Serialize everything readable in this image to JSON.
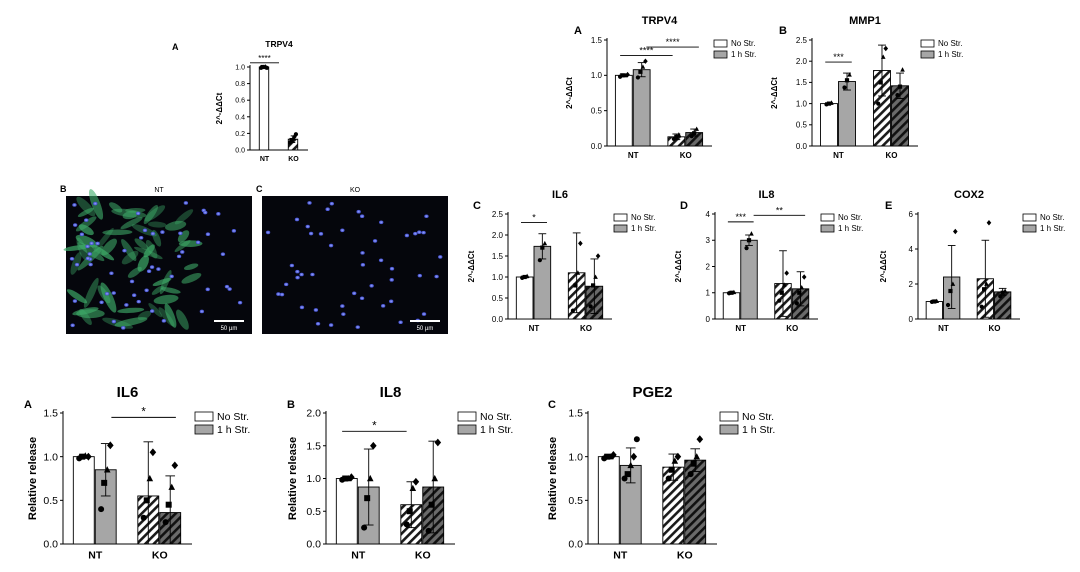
{
  "chart_data": [
    {
      "id": "p1",
      "type": "bar",
      "panel_label": "A",
      "title": "TRPV4",
      "ylabel": "2^-ΔΔCt",
      "categories": [
        "NT",
        "KO"
      ],
      "ylim": [
        0,
        1.0
      ],
      "yticks": [
        0,
        0.2,
        0.4,
        0.6,
        0.8,
        1.0
      ],
      "ytick_labels": [
        "0.0",
        "0.2",
        "0.4",
        "0.6",
        "0.8",
        "1.0"
      ],
      "series": [
        {
          "values": [
            1.0,
            0.13
          ],
          "errors": [
            0.0,
            0.04
          ]
        }
      ],
      "points": [
        [
          0.99,
          1.0,
          1.0,
          1.0,
          0.99
        ],
        [
          0.09,
          0.12,
          0.14,
          0.16,
          0.19
        ]
      ],
      "significance": [
        {
          "label": "****",
          "from": 0,
          "to": 1,
          "y": 1.05
        }
      ]
    },
    {
      "id": "p2",
      "type": "bar",
      "panel_label": "A",
      "title": "TRPV4",
      "ylabel": "2^-ΔΔCt",
      "categories": [
        "NT",
        "KO"
      ],
      "ylim": [
        0,
        1.5
      ],
      "yticks": [
        0,
        0.5,
        1.0,
        1.5
      ],
      "ytick_labels": [
        "0.0",
        "0.5",
        "1.0",
        "1.5"
      ],
      "series": [
        {
          "name": "No Str.",
          "values": [
            1.0,
            0.13
          ],
          "errors": [
            0.02,
            0.04
          ]
        },
        {
          "name": "1 h Str.",
          "values": [
            1.08,
            0.19
          ],
          "errors": [
            0.1,
            0.05
          ]
        }
      ],
      "points": [
        [
          [
            0.98,
            1.0,
            1.0,
            1.01
          ],
          [
            0.97,
            1.05,
            1.12,
            1.2
          ]
        ],
        [
          [
            0.1,
            0.13,
            0.16
          ],
          [
            0.14,
            0.18,
            0.24
          ]
        ]
      ],
      "significance": [
        {
          "label": "****",
          "from": 0.5,
          "to": 2.5,
          "y": 1.28
        },
        {
          "label": "****",
          "from": 1.5,
          "to": 3.5,
          "y": 1.4
        }
      ]
    },
    {
      "id": "p3",
      "type": "bar",
      "panel_label": "B",
      "title": "MMP1",
      "ylabel": "2^-ΔΔCt",
      "categories": [
        "NT",
        "KO"
      ],
      "ylim": [
        0,
        2.5
      ],
      "yticks": [
        0,
        0.5,
        1.0,
        1.5,
        2.0,
        2.5
      ],
      "ytick_labels": [
        "0.0",
        "0.5",
        "1.0",
        "1.5",
        "2.0",
        "2.5"
      ],
      "series": [
        {
          "name": "No Str.",
          "values": [
            1.0,
            1.78
          ],
          "errors": [
            0.02,
            0.6
          ]
        },
        {
          "name": "1 h Str.",
          "values": [
            1.52,
            1.42
          ],
          "errors": [
            0.2,
            0.3
          ]
        }
      ],
      "points": [
        [
          [
            0.98,
            1.0,
            1.02
          ],
          [
            1.38,
            1.55,
            1.68
          ]
        ],
        [
          [
            1.0,
            1.5,
            2.1,
            2.3
          ],
          [
            1.2,
            1.4,
            1.8
          ]
        ]
      ],
      "significance": [
        {
          "label": "***",
          "from": 0.5,
          "to": 1.5,
          "y": 1.98
        }
      ]
    },
    {
      "id": "p4",
      "type": "bar",
      "panel_label": "C",
      "title": "IL6",
      "ylabel": "2^-ΔΔCt",
      "categories": [
        "NT",
        "KO"
      ],
      "ylim": [
        0,
        2.5
      ],
      "yticks": [
        0,
        0.5,
        1.0,
        1.5,
        2.0,
        2.5
      ],
      "ytick_labels": [
        "0.0",
        "0.5",
        "1.0",
        "1.5",
        "2.0",
        "2.5"
      ],
      "series": [
        {
          "name": "No Str.",
          "values": [
            1.0,
            1.1
          ],
          "errors": [
            0.02,
            0.95
          ]
        },
        {
          "name": "1 h Str.",
          "values": [
            1.73,
            0.78
          ],
          "errors": [
            0.3,
            0.65
          ]
        }
      ],
      "points": [
        [
          [
            0.98,
            1.0,
            1.02
          ],
          [
            1.4,
            1.7,
            1.8
          ]
        ],
        [
          [
            0.2,
            0.8,
            1.1,
            1.8
          ],
          [
            0.3,
            0.8,
            1.0,
            1.5
          ]
        ]
      ],
      "significance": [
        {
          "label": "*",
          "from": 0.5,
          "to": 1.5,
          "y": 2.3
        }
      ]
    },
    {
      "id": "p5",
      "type": "bar",
      "panel_label": "D",
      "title": "IL8",
      "ylabel": "2^-ΔΔCt",
      "categories": [
        "NT",
        "KO"
      ],
      "ylim": [
        0,
        4
      ],
      "yticks": [
        0,
        1,
        2,
        3,
        4
      ],
      "ytick_labels": [
        "0",
        "1",
        "2",
        "3",
        "4"
      ],
      "series": [
        {
          "name": "No Str.",
          "values": [
            1.0,
            1.35
          ],
          "errors": [
            0.02,
            1.25
          ]
        },
        {
          "name": "1 h Str.",
          "values": [
            3.0,
            1.15
          ],
          "errors": [
            0.2,
            0.65
          ]
        }
      ],
      "points": [
        [
          [
            0.98,
            1.0,
            1.02
          ],
          [
            2.7,
            3.0,
            3.25
          ]
        ],
        [
          [
            0.7,
            1.0,
            1.3,
            1.75
          ],
          [
            0.6,
            1.0,
            1.2,
            1.6
          ]
        ]
      ],
      "significance": [
        {
          "label": "***",
          "from": 0.5,
          "to": 1.5,
          "y": 3.7
        },
        {
          "label": "**",
          "from": 1.5,
          "to": 3.5,
          "y": 3.95
        }
      ]
    },
    {
      "id": "p6",
      "type": "bar",
      "panel_label": "E",
      "title": "COX2",
      "ylabel": "2^-ΔΔCt",
      "categories": [
        "NT",
        "KO"
      ],
      "ylim": [
        0,
        6
      ],
      "yticks": [
        0,
        2,
        4,
        6
      ],
      "ytick_labels": [
        "0",
        "2",
        "4",
        "6"
      ],
      "series": [
        {
          "name": "No Str.",
          "values": [
            1.0,
            2.3
          ],
          "errors": [
            0.02,
            2.2
          ]
        },
        {
          "name": "1 h Str.",
          "values": [
            2.4,
            1.55
          ],
          "errors": [
            1.8,
            0.2
          ]
        }
      ],
      "points": [
        [
          [
            0.98,
            1.0,
            1.02
          ],
          [
            0.8,
            1.6,
            2.0,
            5.0
          ]
        ],
        [
          [
            0.7,
            1.7,
            2.0,
            5.5
          ],
          [
            1.3,
            1.5,
            1.6
          ]
        ]
      ],
      "significance": []
    },
    {
      "id": "p7",
      "type": "bar",
      "panel_label": "A",
      "title": "IL6",
      "ylabel": "Relative release",
      "categories": [
        "NT",
        "KO"
      ],
      "ylim": [
        0,
        1.5
      ],
      "yticks": [
        0,
        0.5,
        1.0,
        1.5
      ],
      "ytick_labels": [
        "0.0",
        "0.5",
        "1.0",
        "1.5"
      ],
      "series": [
        {
          "name": "No Str.",
          "values": [
            1.0,
            0.55
          ],
          "errors": [
            0.02,
            0.62
          ]
        },
        {
          "name": "1 h Str.",
          "values": [
            0.85,
            0.36
          ],
          "errors": [
            0.3,
            0.42
          ]
        }
      ],
      "points": [
        [
          [
            0.98,
            1.0,
            1.01,
            1.0
          ],
          [
            0.4,
            0.7,
            0.85,
            1.13
          ]
        ],
        [
          [
            0.3,
            0.5,
            0.75,
            1.05
          ],
          [
            0.25,
            0.45,
            0.65,
            0.9
          ]
        ]
      ],
      "significance": [
        {
          "label": "*",
          "from": 1.5,
          "to": 3.5,
          "y": 1.45
        }
      ]
    },
    {
      "id": "p8",
      "type": "bar",
      "panel_label": "B",
      "title": "IL8",
      "ylabel": "Relative release",
      "categories": [
        "NT",
        "KO"
      ],
      "ylim": [
        0,
        2.0
      ],
      "yticks": [
        0,
        0.5,
        1.0,
        1.5,
        2.0
      ],
      "ytick_labels": [
        "0.0",
        "0.5",
        "1.0",
        "1.5",
        "2.0"
      ],
      "series": [
        {
          "name": "No Str.",
          "values": [
            1.0,
            0.6
          ],
          "errors": [
            0.02,
            0.35
          ]
        },
        {
          "name": "1 h Str.",
          "values": [
            0.87,
            0.87
          ],
          "errors": [
            0.58,
            0.7
          ]
        }
      ],
      "points": [
        [
          [
            0.98,
            1.0,
            1.0,
            1.02
          ],
          [
            0.25,
            0.7,
            1.0,
            1.5
          ]
        ],
        [
          [
            0.3,
            0.5,
            0.85,
            0.95
          ],
          [
            0.2,
            0.6,
            1.0,
            1.55
          ]
        ]
      ],
      "significance": [
        {
          "label": "*",
          "from": 0.5,
          "to": 2.5,
          "y": 1.72
        }
      ]
    },
    {
      "id": "p9",
      "type": "bar",
      "panel_label": "C",
      "title": "PGE2",
      "ylabel": "Relative release",
      "categories": [
        "NT",
        "KO"
      ],
      "ylim": [
        0,
        1.5
      ],
      "yticks": [
        0,
        0.5,
        1.0,
        1.5
      ],
      "ytick_labels": [
        "0.0",
        "0.5",
        "1.0",
        "1.5"
      ],
      "series": [
        {
          "name": "No Str.",
          "values": [
            1.0,
            0.88
          ],
          "errors": [
            0.02,
            0.15
          ]
        },
        {
          "name": "1 h Str.",
          "values": [
            0.9,
            0.96
          ],
          "errors": [
            0.2,
            0.13
          ]
        }
      ],
      "points": [
        [
          [
            0.98,
            1.0,
            1.0,
            1.02
          ],
          [
            0.75,
            0.8,
            0.9,
            1.0,
            1.2
          ]
        ],
        [
          [
            0.75,
            0.85,
            0.95,
            1.0
          ],
          [
            0.8,
            0.92,
            1.0,
            1.2
          ]
        ]
      ],
      "significance": []
    }
  ],
  "micrographs": [
    {
      "panel_label": "B",
      "title": "NT",
      "scale_bar": "50 µm"
    },
    {
      "panel_label": "C",
      "title": "KO",
      "scale_bar": "50 µm"
    }
  ]
}
